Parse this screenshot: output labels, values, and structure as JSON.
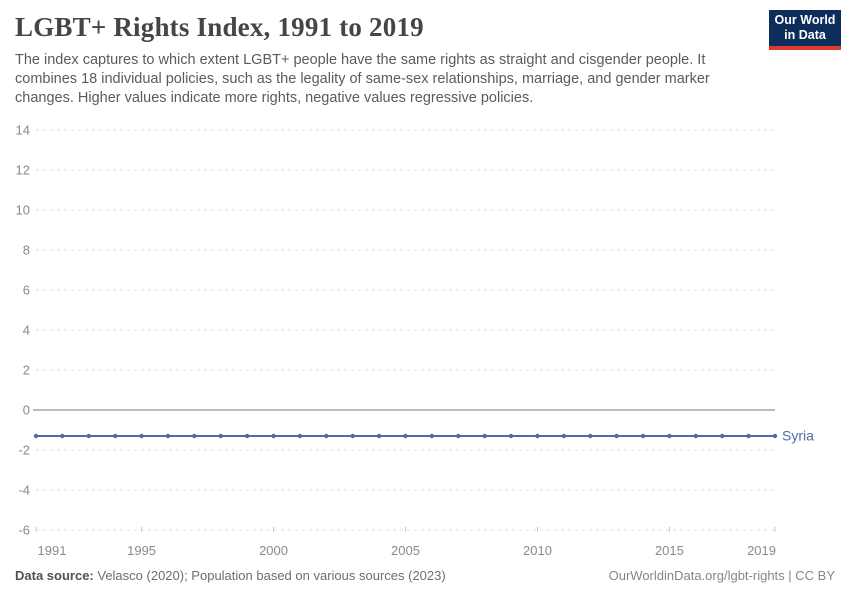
{
  "header": {
    "title": "LGBT+ Rights Index, 1991 to 2019",
    "logo": {
      "line1": "Our World",
      "line2": "in Data"
    }
  },
  "subtitle": "The index captures to which extent LGBT+ people have the same rights as straight and cisgender people. It combines 18 individual policies, such as the legality of same-sex relationships, marriage, and gender marker changes. Higher values indicate more rights, negative values regressive policies.",
  "chart_data": {
    "type": "line",
    "title": "LGBT+ Rights Index, 1991 to 2019",
    "xlabel": "",
    "ylabel": "",
    "ylim": [
      -6,
      14
    ],
    "grid": "horizontal-dashed",
    "zero_line": true,
    "legend_position": "end-of-line-label",
    "x": [
      1991,
      1992,
      1993,
      1994,
      1995,
      1996,
      1997,
      1998,
      1999,
      2000,
      2001,
      2002,
      2003,
      2004,
      2005,
      2006,
      2007,
      2008,
      2009,
      2010,
      2011,
      2012,
      2013,
      2014,
      2015,
      2016,
      2017,
      2018,
      2019
    ],
    "xticks": [
      1991,
      1995,
      2000,
      2005,
      2010,
      2015,
      2019
    ],
    "yticks": [
      14,
      12,
      10,
      8,
      6,
      4,
      2,
      0,
      -2,
      -4,
      -6
    ],
    "series": [
      {
        "name": "Syria",
        "color": "#4c6da5",
        "values": [
          -1.3,
          -1.3,
          -1.3,
          -1.3,
          -1.3,
          -1.3,
          -1.3,
          -1.3,
          -1.3,
          -1.3,
          -1.3,
          -1.3,
          -1.3,
          -1.3,
          -1.3,
          -1.3,
          -1.3,
          -1.3,
          -1.3,
          -1.3,
          -1.3,
          -1.3,
          -1.3,
          -1.3,
          -1.3,
          -1.3,
          -1.3,
          -1.3,
          -1.3
        ]
      }
    ]
  },
  "footer": {
    "source_label": "Data source:",
    "source_text": " Velasco (2020); Population based on various sources (2023)",
    "right_text": "OurWorldinData.org/lgbt-rights | CC BY"
  },
  "colors": {
    "line": "#4c6da5",
    "grid": "#dcdcdc",
    "zero_line": "#b3b3b3",
    "axis_text": "#8a8a8a",
    "logo_navy": "#0d2d5a",
    "logo_red": "#e0392f"
  }
}
